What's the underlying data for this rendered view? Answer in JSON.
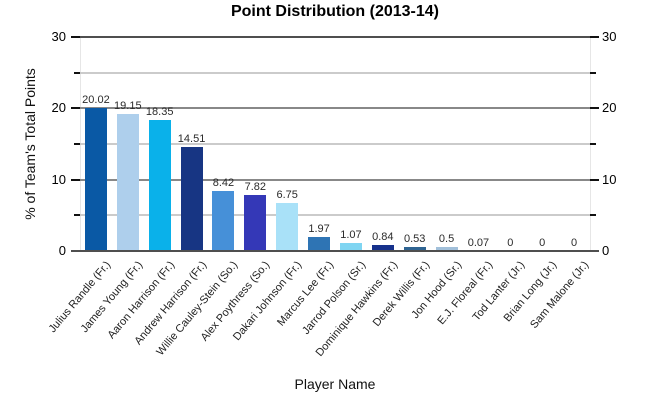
{
  "title": "Point Distribution (2013-14)",
  "axes": {
    "x_title": "Player Name",
    "y_title": "% of Team's Total Points",
    "y_max": 30,
    "y_tick_minor_step": 5,
    "y_tick_major_step": 10,
    "y_major_tick_labels": [
      "0",
      "10",
      "20",
      "30"
    ]
  },
  "colors": {
    "background": "#ffffff",
    "axis_border": "#4f4f4f",
    "grid_major": "#888888",
    "grid_minor": "#cbcbcb",
    "side_border": "#e6e6e6",
    "tick": "#111111"
  },
  "chart_data": {
    "type": "bar",
    "title": "Point Distribution (2013-14)",
    "xlabel": "Player Name",
    "ylabel": "% of Team's Total Points",
    "ylim": [
      0,
      30
    ],
    "grid": true,
    "legend": "none",
    "y_major_ticks": [
      0,
      10,
      20,
      30
    ],
    "y_minor_ticks": [
      5,
      15,
      25
    ],
    "categories": [
      "Julius Randle (Fr.)",
      "James Young (Fr.)",
      "Aaron Harrison (Fr.)",
      "Andrew Harrison (Fr.)",
      "Willie Cauley-Stein (So.)",
      "Alex Poythress (So.)",
      "Dakari Johnson (Fr.)",
      "Marcus Lee (Fr.)",
      "Jarrod Polson (Sr.)",
      "Dominique Hawkins (Fr.)",
      "Derek Willis (Fr.)",
      "Jon Hood (Sr.)",
      "E.J. Floreal (Fr.)",
      "Tod Lanter (Jr.)",
      "Brian Long (Jr.)",
      "Sam Malone (Jr.)"
    ],
    "values": [
      20.02,
      19.15,
      18.35,
      14.51,
      8.42,
      7.82,
      6.75,
      1.97,
      1.07,
      0.84,
      0.53,
      0.5,
      0.07,
      0,
      0,
      0
    ],
    "value_labels": [
      "20.02",
      "19.15",
      "18.35",
      "14.51",
      "8.42",
      "7.82",
      "6.75",
      "1.97",
      "1.07",
      "0.84",
      "0.53",
      "0.5",
      "0.07",
      "0",
      "0",
      "0"
    ],
    "bar_colors": [
      "#0a59a5",
      "#aecfec",
      "#0ab1ea",
      "#173583",
      "#4690d8",
      "#3438b7",
      "#a9e1f8",
      "#2e74b4",
      "#7fd5f2",
      "#16318c",
      "#2f6492",
      "#a2c0da",
      "#2d7fae",
      null,
      null,
      null
    ]
  }
}
